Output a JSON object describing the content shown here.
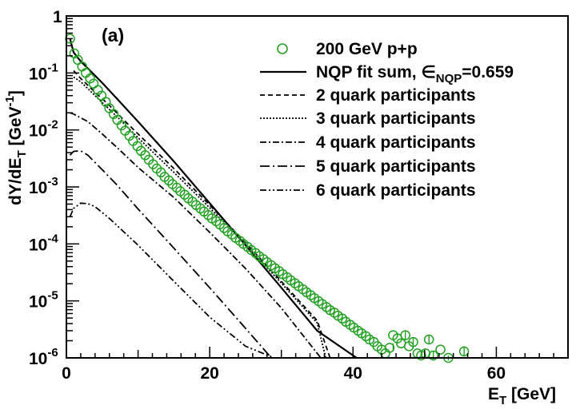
{
  "chart_data": {
    "type": "scatter",
    "panel_label": "(a)",
    "xlabel": {
      "main": "E",
      "sub": "T",
      "rest": " [GeV]"
    },
    "ylabel": {
      "pre": "dY/dE",
      "sub": "T",
      "mid": " [GeV",
      "sup": "-1",
      "post": "]"
    },
    "xlim": [
      0,
      70
    ],
    "ylim": [
      1e-06,
      1
    ],
    "log_y": true,
    "legend_position": "top-right",
    "x_ticks": [
      {
        "value": 0,
        "label": "0"
      },
      {
        "value": 20,
        "label": "20"
      },
      {
        "value": 40,
        "label": "40"
      },
      {
        "value": 60,
        "label": "60"
      }
    ],
    "y_ticks": [
      {
        "value": 1,
        "base": "1",
        "exp": ""
      },
      {
        "value": 0.1,
        "base": "10",
        "exp": "-1"
      },
      {
        "value": 0.01,
        "base": "10",
        "exp": "-2"
      },
      {
        "value": 0.001,
        "base": "10",
        "exp": "-3"
      },
      {
        "value": 0.0001,
        "base": "10",
        "exp": "-4"
      },
      {
        "value": 1e-05,
        "base": "10",
        "exp": "-5"
      },
      {
        "value": 1e-06,
        "base": "10",
        "exp": "-6"
      }
    ],
    "data_series": {
      "name": "200 GeV p+p",
      "color": "#22a022",
      "x": [
        0.5,
        1.1,
        1.6,
        2.2,
        2.7,
        3.3,
        3.8,
        4.4,
        4.9,
        5.5,
        6.0,
        6.6,
        7.1,
        7.7,
        8.2,
        8.8,
        9.3,
        9.9,
        10.4,
        11.0,
        11.5,
        12.1,
        12.6,
        13.2,
        13.7,
        14.3,
        14.8,
        15.4,
        15.9,
        16.5,
        17.0,
        17.6,
        18.1,
        18.7,
        19.2,
        19.8,
        20.3,
        20.9,
        21.4,
        22.0,
        22.5,
        23.1,
        23.6,
        24.2,
        24.7,
        25.3,
        25.8,
        26.4,
        26.9,
        27.5,
        28.0,
        28.6,
        29.1,
        29.7,
        30.2,
        30.8,
        31.3,
        31.9,
        32.4,
        33.0,
        33.5,
        34.1,
        34.6,
        35.2,
        35.7,
        36.3,
        36.8,
        37.4,
        37.9,
        38.5,
        39.0,
        39.6,
        40.1,
        40.7,
        41.2,
        41.8,
        42.3,
        42.9,
        43.4,
        44.0,
        44.5,
        45.1,
        45.6,
        46.2,
        46.7,
        47.3,
        47.8,
        48.4,
        49.0,
        49.5,
        50.1,
        50.6,
        51.2,
        52.2,
        53.3,
        55.5
      ],
      "y": [
        0.4,
        0.22,
        0.17,
        0.13,
        0.1,
        0.08,
        0.065,
        0.05,
        0.04,
        0.031,
        0.024,
        0.019,
        0.015,
        0.012,
        0.0097,
        0.0079,
        0.0064,
        0.0052,
        0.0043,
        0.0036,
        0.003,
        0.0025,
        0.0021,
        0.0018,
        0.0015,
        0.0013,
        0.00112,
        0.00097,
        0.00084,
        0.00073,
        0.00063,
        0.00055,
        0.00048,
        0.00042,
        0.00037,
        0.00032,
        0.00028,
        0.00025,
        0.00022,
        0.00019,
        0.000166,
        0.000146,
        0.000128,
        0.000113,
        0.0001,
        8.85e-05,
        7.8e-05,
        6.9e-05,
        6.1e-05,
        5.4e-05,
        4.78e-05,
        4.23e-05,
        3.75e-05,
        3.32e-05,
        2.94e-05,
        2.6e-05,
        2.3e-05,
        2.04e-05,
        1.81e-05,
        1.6e-05,
        1.42e-05,
        1.26e-05,
        1.12e-05,
        9.9e-06,
        8.8e-06,
        7.8e-06,
        6.9e-06,
        6.2e-06,
        5.5e-06,
        4.9e-06,
        4.3e-06,
        3.8e-06,
        3.4e-06,
        3e-06,
        2.7e-06,
        2.4e-06,
        2.1e-06,
        1.9e-06,
        1.6e-06,
        1.4e-06,
        1.2e-06,
        1.5e-06,
        2.5e-06,
        2.2e-06,
        1.8e-06,
        2.5e-06,
        1.6e-06,
        1.9e-06,
        1.2e-06,
        1.1e-06,
        1.2e-06,
        2.1e-06,
        1.1e-06,
        1.4e-06,
        1e-06,
        1.3e-06
      ],
      "error_bars": [
        {
          "x": 45.6,
          "lo": 1.3e-06,
          "hi": 1.8e-06
        },
        {
          "x": 47.3,
          "lo": 2.1e-06,
          "hi": 3e-06
        },
        {
          "x": 48.4,
          "lo": 1.5e-06,
          "hi": 2.3e-06
        },
        {
          "x": 50.6,
          "lo": 1.8e-06,
          "hi": 2.5e-06
        },
        {
          "x": 51.2,
          "lo": 9e-07,
          "hi": 1.3e-06
        },
        {
          "x": 53.3,
          "lo": 9e-07,
          "hi": 1.1e-06
        },
        {
          "x": 55.5,
          "lo": 1.1e-06,
          "hi": 1.6e-06
        }
      ]
    },
    "curves": [
      {
        "name": "NQP fit sum, ∈",
        "name_sub": "NQP",
        "name_tail": "=0.659",
        "dash": "",
        "width": 2.2,
        "x": [
          0.5,
          1,
          2,
          3,
          5,
          7,
          10,
          15,
          20,
          25,
          30,
          35,
          40.5
        ],
        "y": [
          0.4,
          0.23,
          0.16,
          0.12,
          0.067,
          0.036,
          0.014,
          0.0028,
          0.00052,
          9.5e-05,
          1.7e-05,
          3e-06,
          1e-06
        ]
      },
      {
        "name": "2 quark participants",
        "dash": "6,4",
        "width": 1.8,
        "x": [
          1,
          2,
          4,
          6,
          8,
          10,
          15,
          20,
          25,
          30,
          35,
          36.8
        ],
        "y": [
          0.11,
          0.08,
          0.046,
          0.027,
          0.015,
          0.0085,
          0.0021,
          0.00048,
          0.000105,
          2.2e-05,
          4.5e-06,
          1e-06
        ]
      },
      {
        "name": "3 quark participants",
        "dash": "2,2",
        "width": 1.8,
        "x": [
          1,
          2,
          4,
          6,
          8,
          10,
          15,
          20,
          25,
          30,
          35,
          36.2
        ],
        "y": [
          0.085,
          0.07,
          0.04,
          0.023,
          0.013,
          0.0073,
          0.0018,
          0.00043,
          9.75e-05,
          2.05e-05,
          4.1e-06,
          1e-06
        ]
      },
      {
        "name": "4 quark participants",
        "dash": "8,3,2,3",
        "width": 1.8,
        "x": [
          0.5,
          1,
          3,
          5,
          7,
          10,
          15,
          20,
          25,
          30,
          35.5
        ],
        "y": [
          0.02,
          0.019,
          0.014,
          0.0085,
          0.005,
          0.0022,
          0.00065,
          0.00016,
          3.7e-05,
          7.5e-06,
          1e-06
        ]
      },
      {
        "name": "5 quark participants",
        "dash": "12,4,2,4",
        "width": 1.8,
        "x": [
          0.5,
          1,
          2,
          3,
          5,
          7,
          10,
          15,
          20,
          25,
          30,
          34.5
        ],
        "y": [
          0.0036,
          0.0042,
          0.0043,
          0.0036,
          0.002,
          0.0011,
          0.00041,
          8.4e-05,
          1.7e-05,
          3.3e-06,
          6.3e-07,
          1e-06
        ]
      },
      {
        "name": "6 quark participants",
        "dash": "8,3,2,3,2,3",
        "width": 1.8,
        "x": [
          0.5,
          1,
          2,
          3,
          4,
          6,
          10,
          15,
          20,
          25,
          29,
          30
        ],
        "y": [
          0.0003,
          0.00042,
          0.00052,
          0.00051,
          0.00045,
          0.00028,
          9.5e-05,
          2.2e-05,
          5.2e-06,
          1.6e-06,
          1e-06,
          1e-06
        ]
      }
    ]
  }
}
